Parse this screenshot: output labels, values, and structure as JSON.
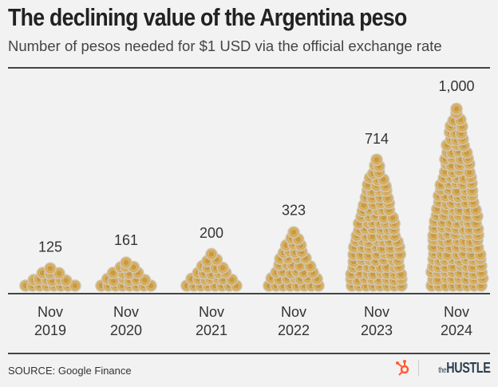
{
  "title": "The declining value of the Argentina peso",
  "subtitle": "Number of pesos needed for $1 USD via the official exchange rate",
  "source": "SOURCE: Google Finance",
  "brand": {
    "prefix": "the",
    "name": "HUSTLE"
  },
  "colors": {
    "background": "#f1f2f1",
    "coin": "#d6ab5a",
    "coin_inner": "#c99a44",
    "coin_rim": "#cfc6b2"
  },
  "chart_data": {
    "type": "bar",
    "mark": "coin piles",
    "categories": [
      [
        "Nov",
        "2019"
      ],
      [
        "Nov",
        "2020"
      ],
      [
        "Nov",
        "2021"
      ],
      [
        "Nov",
        "2022"
      ],
      [
        "Nov",
        "2023"
      ],
      [
        "Nov",
        "2024"
      ]
    ],
    "values": [
      125,
      161,
      200,
      323,
      714,
      1000
    ],
    "value_labels": [
      "125",
      "161",
      "200",
      "323",
      "714",
      "1,000"
    ],
    "ylim": [
      0,
      1000
    ],
    "grid": false
  }
}
